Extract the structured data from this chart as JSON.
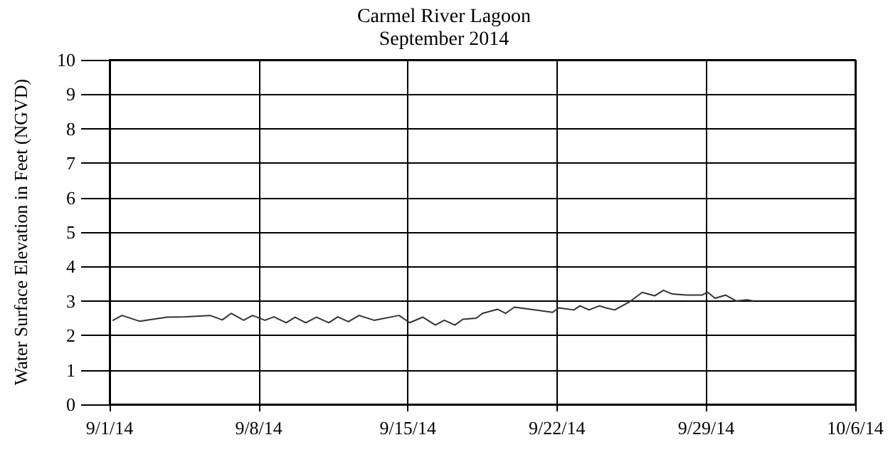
{
  "chart_data": {
    "type": "line",
    "title": "Carmel River Lagoon",
    "subtitle": "September 2014",
    "ylabel": "Water Surface Elevation in Feet (NGVD)",
    "x": [
      "2014-09-01T04:00",
      "2014-09-01T14:00",
      "2014-09-02T10:00",
      "2014-09-03T17:00",
      "2014-09-04T14:00",
      "2014-09-05T17:00",
      "2014-09-06T07:00",
      "2014-09-06T17:00",
      "2014-09-07T07:00",
      "2014-09-07T17:00",
      "2014-09-08T07:00",
      "2014-09-08T17:00",
      "2014-09-09T07:00",
      "2014-09-09T17:00",
      "2014-09-10T05:00",
      "2014-09-10T17:00",
      "2014-09-11T07:00",
      "2014-09-11T17:00",
      "2014-09-12T05:00",
      "2014-09-12T17:00",
      "2014-09-13T10:00",
      "2014-09-14T14:00",
      "2014-09-15T02:00",
      "2014-09-15T17:00",
      "2014-09-16T07:00",
      "2014-09-16T17:00",
      "2014-09-17T05:00",
      "2014-09-17T14:00",
      "2014-09-18T05:00",
      "2014-09-18T12:00",
      "2014-09-19T05:00",
      "2014-09-19T14:00",
      "2014-09-20T00:00",
      "2014-09-21T00:00",
      "2014-09-21T19:00",
      "2014-09-22T02:00",
      "2014-09-22T19:00",
      "2014-09-23T02:00",
      "2014-09-23T12:00",
      "2014-09-24T00:00",
      "2014-09-24T07:00",
      "2014-09-24T17:00",
      "2014-09-25T10:00",
      "2014-09-26T00:00",
      "2014-09-26T14:00",
      "2014-09-27T00:00",
      "2014-09-27T10:00",
      "2014-09-28T02:00",
      "2014-09-28T19:00",
      "2014-09-29T02:00",
      "2014-09-29T10:00",
      "2014-09-29T22:00",
      "2014-09-30T10:00",
      "2014-09-30T22:00",
      "2014-10-01T05:00"
    ],
    "series": [
      {
        "color": "#333333",
        "values": [
          2.44,
          2.58,
          2.41,
          2.53,
          2.54,
          2.58,
          2.45,
          2.64,
          2.44,
          2.58,
          2.44,
          2.54,
          2.37,
          2.53,
          2.37,
          2.53,
          2.37,
          2.54,
          2.4,
          2.58,
          2.44,
          2.58,
          2.37,
          2.53,
          2.3,
          2.44,
          2.3,
          2.47,
          2.5,
          2.64,
          2.76,
          2.64,
          2.82,
          2.74,
          2.67,
          2.8,
          2.74,
          2.86,
          2.74,
          2.86,
          2.8,
          2.74,
          2.98,
          3.25,
          3.15,
          3.31,
          3.2,
          3.17,
          3.17,
          3.25,
          3.08,
          3.17,
          3.0,
          3.03,
          3.0
        ]
      }
    ],
    "xlim": [
      "2014-09-01",
      "2014-10-06"
    ],
    "xticks": [
      {
        "value": "2014-09-01",
        "label": "9/1/14"
      },
      {
        "value": "2014-09-08",
        "label": "9/8/14"
      },
      {
        "value": "2014-09-15",
        "label": "9/15/14"
      },
      {
        "value": "2014-09-22",
        "label": "9/22/14"
      },
      {
        "value": "2014-09-29",
        "label": "9/29/14"
      },
      {
        "value": "2014-10-06",
        "label": "10/6/14"
      }
    ],
    "ylim": [
      0,
      10
    ],
    "yticks": [
      0,
      1,
      2,
      3,
      4,
      5,
      6,
      7,
      8,
      9,
      10
    ],
    "grid": true,
    "marker": "none",
    "line_style": "solid"
  }
}
